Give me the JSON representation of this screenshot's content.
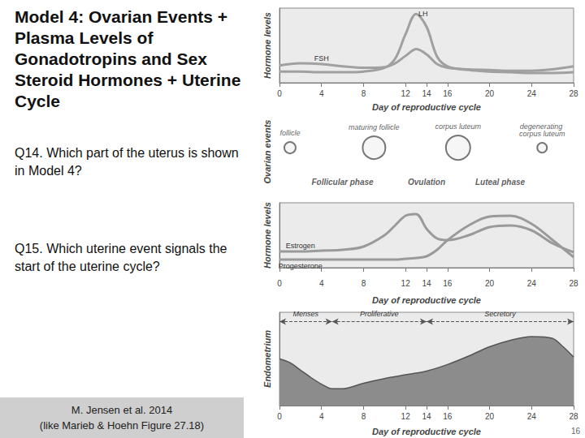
{
  "slide": {
    "title": "Model 4: Ovarian Events + Plasma Levels of Gonadotropins and Sex Steroid Hormones + Uterine Cycle",
    "questions": [
      "Q14. Which part of the uterus is shown in Model 4?",
      "Q15. Which uterine event signals the start of the uterine cycle?"
    ],
    "citation": [
      "M. Jensen et al. 2014",
      "(like Marieb & Hoehn Figure 27.18)"
    ],
    "page": 16
  },
  "chart_data": [
    {
      "type": "line",
      "ylabel": "Hormone levels",
      "xlabel": "Day of reproductive cycle",
      "x": [
        0,
        2,
        4,
        6,
        8,
        10,
        11,
        12,
        13,
        14,
        15,
        16,
        18,
        20,
        22,
        24,
        26,
        28
      ],
      "series": [
        {
          "name": "LH",
          "color": "#a0a0a0",
          "values": [
            1.5,
            1.5,
            1.4,
            1.4,
            1.5,
            2.0,
            3.2,
            6.5,
            9.2,
            7.5,
            3.5,
            2.2,
            1.7,
            1.5,
            1.4,
            1.3,
            1.3,
            1.4
          ]
        },
        {
          "name": "FSH",
          "color": "#a0a0a0",
          "values": [
            2.3,
            2.6,
            2.5,
            2.2,
            2.0,
            2.1,
            2.6,
            3.6,
            4.5,
            3.8,
            2.5,
            2.0,
            1.8,
            1.7,
            1.6,
            1.6,
            1.8,
            2.2
          ]
        }
      ],
      "xlim": [
        0,
        28
      ],
      "xticks": [
        0,
        4,
        8,
        12,
        14,
        16,
        20,
        24,
        28
      ],
      "ylim": [
        0,
        10
      ],
      "yticks": [],
      "tick_labels": "x",
      "grid": false
    },
    {
      "type": "diagram",
      "ylabel": "Ovarian events",
      "xlim": [
        0,
        28
      ],
      "tick_labels": false,
      "stages": [
        {
          "label": "follicle",
          "day": 1
        },
        {
          "label": "maturing follicle",
          "day": 9
        },
        {
          "label": "corpus luteum",
          "day": 17
        },
        {
          "label": "degenerating corpus luteum",
          "day": 25
        }
      ],
      "phases": [
        {
          "label": "Follicular phase",
          "day": 6
        },
        {
          "label": "Ovulation",
          "day": 14
        },
        {
          "label": "Luteal phase",
          "day": 21
        }
      ]
    },
    {
      "type": "line",
      "ylabel": "Hormone levels",
      "xlabel": "Day of reproductive cycle",
      "x": [
        0,
        2,
        4,
        6,
        8,
        10,
        11,
        12,
        13,
        14,
        15,
        16,
        18,
        20,
        22,
        24,
        26,
        28
      ],
      "series": [
        {
          "name": "Estrogen",
          "color": "#9a9a9a",
          "values": [
            2.0,
            2.0,
            2.1,
            2.2,
            2.6,
            4.0,
            5.2,
            6.4,
            6.6,
            4.8,
            3.6,
            3.4,
            4.0,
            5.0,
            5.2,
            4.6,
            3.0,
            1.9
          ]
        },
        {
          "name": "Progesterone",
          "color": "#9a9a9a",
          "values": [
            1.0,
            1.0,
            1.0,
            1.0,
            1.0,
            1.0,
            1.0,
            1.1,
            1.2,
            1.4,
            2.2,
            3.4,
            5.2,
            6.3,
            6.4,
            5.4,
            3.4,
            1.3
          ]
        }
      ],
      "xlim": [
        0,
        28
      ],
      "xticks": [
        0,
        4,
        8,
        12,
        14,
        16,
        20,
        24,
        28
      ],
      "ylim": [
        0,
        8
      ],
      "yticks": [],
      "tick_labels": "x",
      "grid": false
    },
    {
      "type": "area",
      "ylabel": "Endometrium",
      "xlabel": "Day of reproductive cycle",
      "x": [
        0,
        1,
        2,
        3,
        4,
        5,
        6,
        8,
        10,
        12,
        14,
        16,
        18,
        20,
        22,
        24,
        26,
        27,
        28
      ],
      "values": [
        5.0,
        4.6,
        3.8,
        3.0,
        2.3,
        1.8,
        1.8,
        2.4,
        2.9,
        3.3,
        3.7,
        4.4,
        5.3,
        6.3,
        7.0,
        7.4,
        7.2,
        6.3,
        5.2
      ],
      "color": "#8c8c8c",
      "phases": [
        {
          "label": "Menses",
          "start": 0,
          "end": 5
        },
        {
          "label": "Proliferative",
          "start": 5,
          "end": 14
        },
        {
          "label": "Secretory",
          "start": 14,
          "end": 28
        }
      ],
      "xlim": [
        0,
        28
      ],
      "xticks": [
        0,
        4,
        8,
        12,
        14,
        16,
        20,
        24,
        28
      ],
      "ylim": [
        0,
        10
      ],
      "yticks": [],
      "tick_labels": "x",
      "grid": false
    }
  ]
}
